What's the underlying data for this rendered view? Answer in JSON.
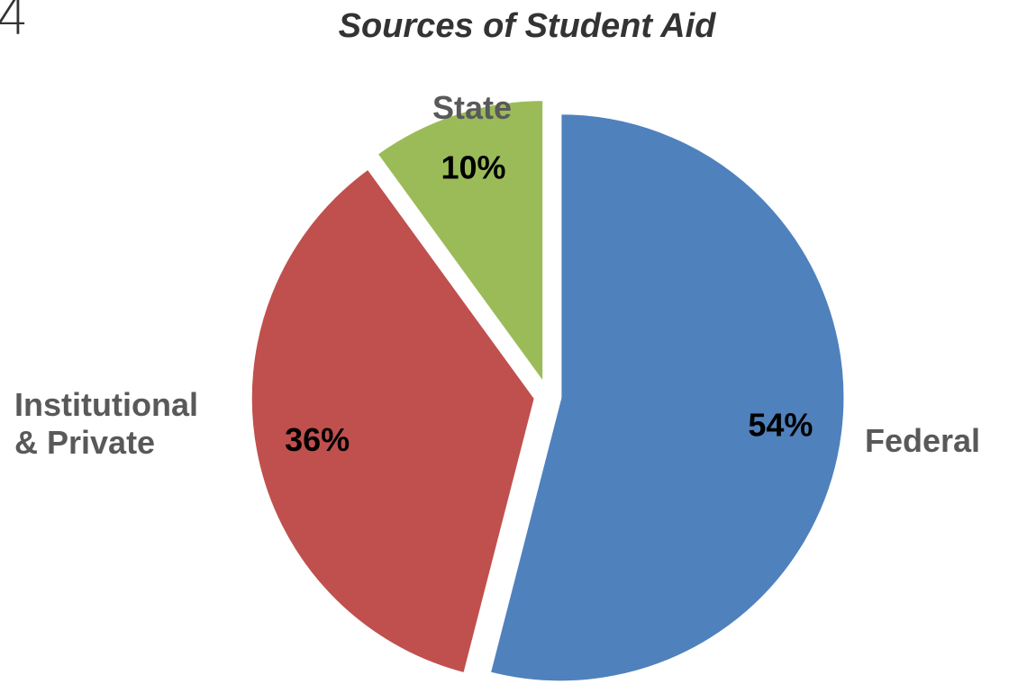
{
  "corner_text": "4",
  "chart_data": {
    "type": "pie",
    "title": "Sources of Student Aid",
    "categories": [
      "Federal",
      "Institutional & Private",
      "State"
    ],
    "category_lines": [
      [
        "Federal"
      ],
      [
        "Institutional",
        "& Private"
      ],
      [
        "State"
      ]
    ],
    "values": [
      54,
      36,
      10
    ],
    "value_labels": [
      "54%",
      "36%",
      "10%"
    ],
    "colors": [
      "#4f81bd",
      "#c0504d",
      "#9bbb59"
    ],
    "start_angle_deg": 0,
    "direction": "clockwise",
    "exploded": true,
    "legend": "none"
  }
}
